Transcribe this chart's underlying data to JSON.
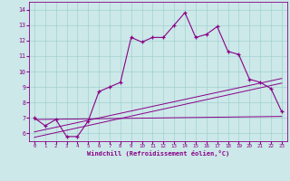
{
  "xlabel": "Windchill (Refroidissement éolien,°C)",
  "bg_color": "#cce8e8",
  "line_color": "#880088",
  "xlim": [
    -0.5,
    23.5
  ],
  "ylim": [
    5.5,
    14.5
  ],
  "yticks": [
    6,
    7,
    8,
    9,
    10,
    11,
    12,
    13,
    14
  ],
  "xticks": [
    0,
    1,
    2,
    3,
    4,
    5,
    6,
    7,
    8,
    9,
    10,
    11,
    12,
    13,
    14,
    15,
    16,
    17,
    18,
    19,
    20,
    21,
    22,
    23
  ],
  "main_x": [
    0,
    1,
    2,
    3,
    4,
    5,
    6,
    7,
    8,
    9,
    10,
    11,
    12,
    13,
    14,
    15,
    16,
    17,
    18,
    19,
    20,
    21,
    22,
    23
  ],
  "main_y": [
    7.0,
    6.5,
    6.9,
    5.8,
    5.8,
    6.8,
    8.7,
    9.0,
    9.3,
    12.2,
    11.9,
    12.2,
    12.2,
    13.0,
    13.8,
    12.2,
    12.4,
    12.9,
    11.3,
    11.1,
    9.5,
    9.3,
    8.9,
    7.4
  ],
  "line2_x": [
    0,
    23
  ],
  "line2_y": [
    6.9,
    7.1
  ],
  "line3_x": [
    0,
    23
  ],
  "line3_y": [
    5.75,
    9.25
  ],
  "line4_x": [
    0,
    23
  ],
  "line4_y": [
    6.1,
    9.55
  ]
}
